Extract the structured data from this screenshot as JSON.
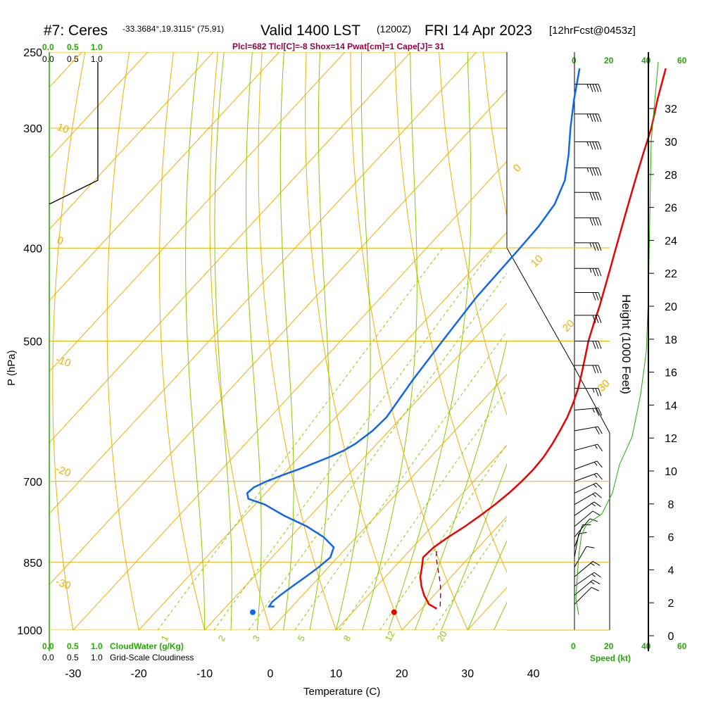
{
  "header": {
    "station": "#7: Ceres",
    "coords": "-33.3684°,19.3115° (75,91)",
    "valid": "Valid 1400 LST",
    "zulu": "(1200Z)",
    "date": "FRI 14 Apr 2023",
    "forecast": "[12hrFcst@0453z]",
    "params": "Plcl=682 Tlcl[C]=-8 Shox=14 Pwat[cm]=1 Cape[J]= 31"
  },
  "cloud_scale": {
    "top_green": [
      "0.0",
      "0.5",
      "1.0"
    ],
    "top_black": [
      "0.0",
      "0.5",
      "1.0"
    ],
    "bottom_green": [
      "0.0",
      "0.5",
      "1.0"
    ],
    "bottom_black": [
      "0.0",
      "0.5",
      "1.0"
    ],
    "cloudwater_label": "CloudWater (g/Kg)",
    "cloudiness_label": "Grid-Scale Cloudiness"
  },
  "wind_speed_scale": {
    "top_black": "0",
    "top_green": [
      "20",
      "40",
      "60"
    ],
    "bottom": [
      "0",
      "20",
      "40",
      "60"
    ],
    "label": "Speed (kt)"
  },
  "colors": {
    "temperature": "#ee0000",
    "dewpoint": "#1166ee",
    "isotherm": "#f0b000",
    "dry_adiabat": "#f0b000",
    "moist_adiabat": "#88cc00",
    "mixing_ratio": "#88cc00",
    "parcel": "#880044",
    "green": "#22aa00"
  },
  "chart_data": {
    "type": "skew-t",
    "xlabel": "Temperature (C)",
    "ylabel": "P (hPa)",
    "y2label": "Height (1000 Feet)",
    "x_ticks": [
      "-30",
      "-20",
      "-10",
      "0",
      "10",
      "20",
      "30",
      "40"
    ],
    "p_ticks": [
      "250",
      "300",
      "400",
      "500",
      "700",
      "850",
      "1000"
    ],
    "height_ticks": [
      "0",
      "2",
      "4",
      "6",
      "8",
      "10",
      "12",
      "14",
      "16",
      "18",
      "20",
      "22",
      "24",
      "26",
      "28",
      "30",
      "32"
    ],
    "dry_adiabat_labels": [
      "10",
      "0",
      "-10",
      "-20",
      "-30",
      "0",
      "10",
      "20",
      "30"
    ],
    "mixing_ratio_labels": [
      "1",
      "2",
      "3",
      "5",
      "8",
      "12",
      "20"
    ],
    "surface_temperature_c": 23.0,
    "surface_dewpoint_c": 1.5,
    "series": [
      {
        "key": "temperature",
        "points_hpa_c": [
          [
            950,
            22.3
          ],
          [
            940,
            20.5
          ],
          [
            920,
            18.5
          ],
          [
            900,
            16.8
          ],
          [
            880,
            15.3
          ],
          [
            860,
            14.2
          ],
          [
            850,
            13.6
          ],
          [
            840,
            13.0
          ],
          [
            820,
            13.2
          ],
          [
            800,
            14.0
          ],
          [
            780,
            15.0
          ],
          [
            760,
            15.8
          ],
          [
            740,
            16.5
          ],
          [
            720,
            17.0
          ],
          [
            700,
            17.3
          ],
          [
            680,
            17.4
          ],
          [
            660,
            17.2
          ],
          [
            640,
            16.7
          ],
          [
            620,
            16.0
          ],
          [
            600,
            15.2
          ],
          [
            580,
            14.1
          ],
          [
            560,
            12.8
          ],
          [
            540,
            11.2
          ],
          [
            520,
            9.5
          ],
          [
            500,
            7.7
          ],
          [
            480,
            6.1
          ],
          [
            460,
            4.5
          ],
          [
            440,
            2.7
          ],
          [
            420,
            0.8
          ],
          [
            400,
            -1.2
          ],
          [
            380,
            -3.3
          ],
          [
            360,
            -5.5
          ],
          [
            340,
            -7.8
          ],
          [
            320,
            -10.2
          ],
          [
            300,
            -12.7
          ],
          [
            280,
            -15.8
          ],
          [
            260,
            -18.9
          ]
        ]
      },
      {
        "key": "dewpoint",
        "points_hpa_c": [
          [
            945,
            -2.7
          ],
          [
            945,
            -3.5
          ],
          [
            935,
            -3.7
          ],
          [
            920,
            -3.4
          ],
          [
            900,
            -2.8
          ],
          [
            880,
            -2.1
          ],
          [
            860,
            -1.5
          ],
          [
            840,
            -1.1
          ],
          [
            820,
            -2.0
          ],
          [
            800,
            -5.0
          ],
          [
            780,
            -9.0
          ],
          [
            760,
            -14.0
          ],
          [
            740,
            -18.5
          ],
          [
            730,
            -21.8
          ],
          [
            720,
            -22.8
          ],
          [
            710,
            -22.6
          ],
          [
            700,
            -21.5
          ],
          [
            690,
            -20.0
          ],
          [
            680,
            -18.3
          ],
          [
            670,
            -16.8
          ],
          [
            660,
            -15.3
          ],
          [
            650,
            -14.1
          ],
          [
            640,
            -13.3
          ],
          [
            620,
            -12.5
          ],
          [
            600,
            -12.3
          ],
          [
            550,
            -13.5
          ],
          [
            500,
            -14.5
          ],
          [
            450,
            -15.5
          ],
          [
            400,
            -15.8
          ],
          [
            380,
            -16.0
          ],
          [
            360,
            -16.7
          ],
          [
            340,
            -18.5
          ],
          [
            320,
            -21.5
          ],
          [
            300,
            -25.0
          ],
          [
            280,
            -28.5
          ],
          [
            260,
            -32.0
          ]
        ]
      },
      {
        "key": "parcel",
        "points_hpa_c": [
          [
            945,
            22.5
          ],
          [
            920,
            21.0
          ],
          [
            900,
            19.7
          ],
          [
            880,
            18.2
          ],
          [
            860,
            16.6
          ],
          [
            840,
            15.0
          ],
          [
            825,
            14.0
          ]
        ]
      }
    ],
    "wind_barbs": [
      {
        "p": 270,
        "dir": 270,
        "spd": 45
      },
      {
        "p": 290,
        "dir": 270,
        "spd": 45
      },
      {
        "p": 310,
        "dir": 270,
        "spd": 45
      },
      {
        "p": 330,
        "dir": 270,
        "spd": 45
      },
      {
        "p": 350,
        "dir": 270,
        "spd": 40
      },
      {
        "p": 372,
        "dir": 270,
        "spd": 40
      },
      {
        "p": 395,
        "dir": 270,
        "spd": 35
      },
      {
        "p": 420,
        "dir": 270,
        "spd": 35
      },
      {
        "p": 445,
        "dir": 270,
        "spd": 30
      },
      {
        "p": 470,
        "dir": 270,
        "spd": 30
      },
      {
        "p": 500,
        "dir": 270,
        "spd": 30
      },
      {
        "p": 530,
        "dir": 270,
        "spd": 30
      },
      {
        "p": 560,
        "dir": 270,
        "spd": 25
      },
      {
        "p": 590,
        "dir": 265,
        "spd": 25
      },
      {
        "p": 620,
        "dir": 260,
        "spd": 20
      },
      {
        "p": 650,
        "dir": 255,
        "spd": 15
      },
      {
        "p": 680,
        "dir": 250,
        "spd": 15
      },
      {
        "p": 700,
        "dir": 250,
        "spd": 15
      },
      {
        "p": 720,
        "dir": 245,
        "spd": 15
      },
      {
        "p": 740,
        "dir": 240,
        "spd": 15
      },
      {
        "p": 760,
        "dir": 235,
        "spd": 15
      },
      {
        "p": 780,
        "dir": 230,
        "spd": 10
      },
      {
        "p": 800,
        "dir": 220,
        "spd": 10
      },
      {
        "p": 820,
        "dir": 200,
        "spd": 10
      },
      {
        "p": 840,
        "dir": 190,
        "spd": 10
      },
      {
        "p": 860,
        "dir": 210,
        "spd": 10
      },
      {
        "p": 880,
        "dir": 230,
        "spd": 15
      },
      {
        "p": 900,
        "dir": 235,
        "spd": 15
      },
      {
        "p": 920,
        "dir": 230,
        "spd": 15
      },
      {
        "p": 940,
        "dir": 225,
        "spd": 10
      }
    ],
    "cloudiness_profile": [
      [
        360,
        0.0
      ],
      [
        340,
        1.0
      ],
      [
        250,
        1.0
      ]
    ]
  }
}
